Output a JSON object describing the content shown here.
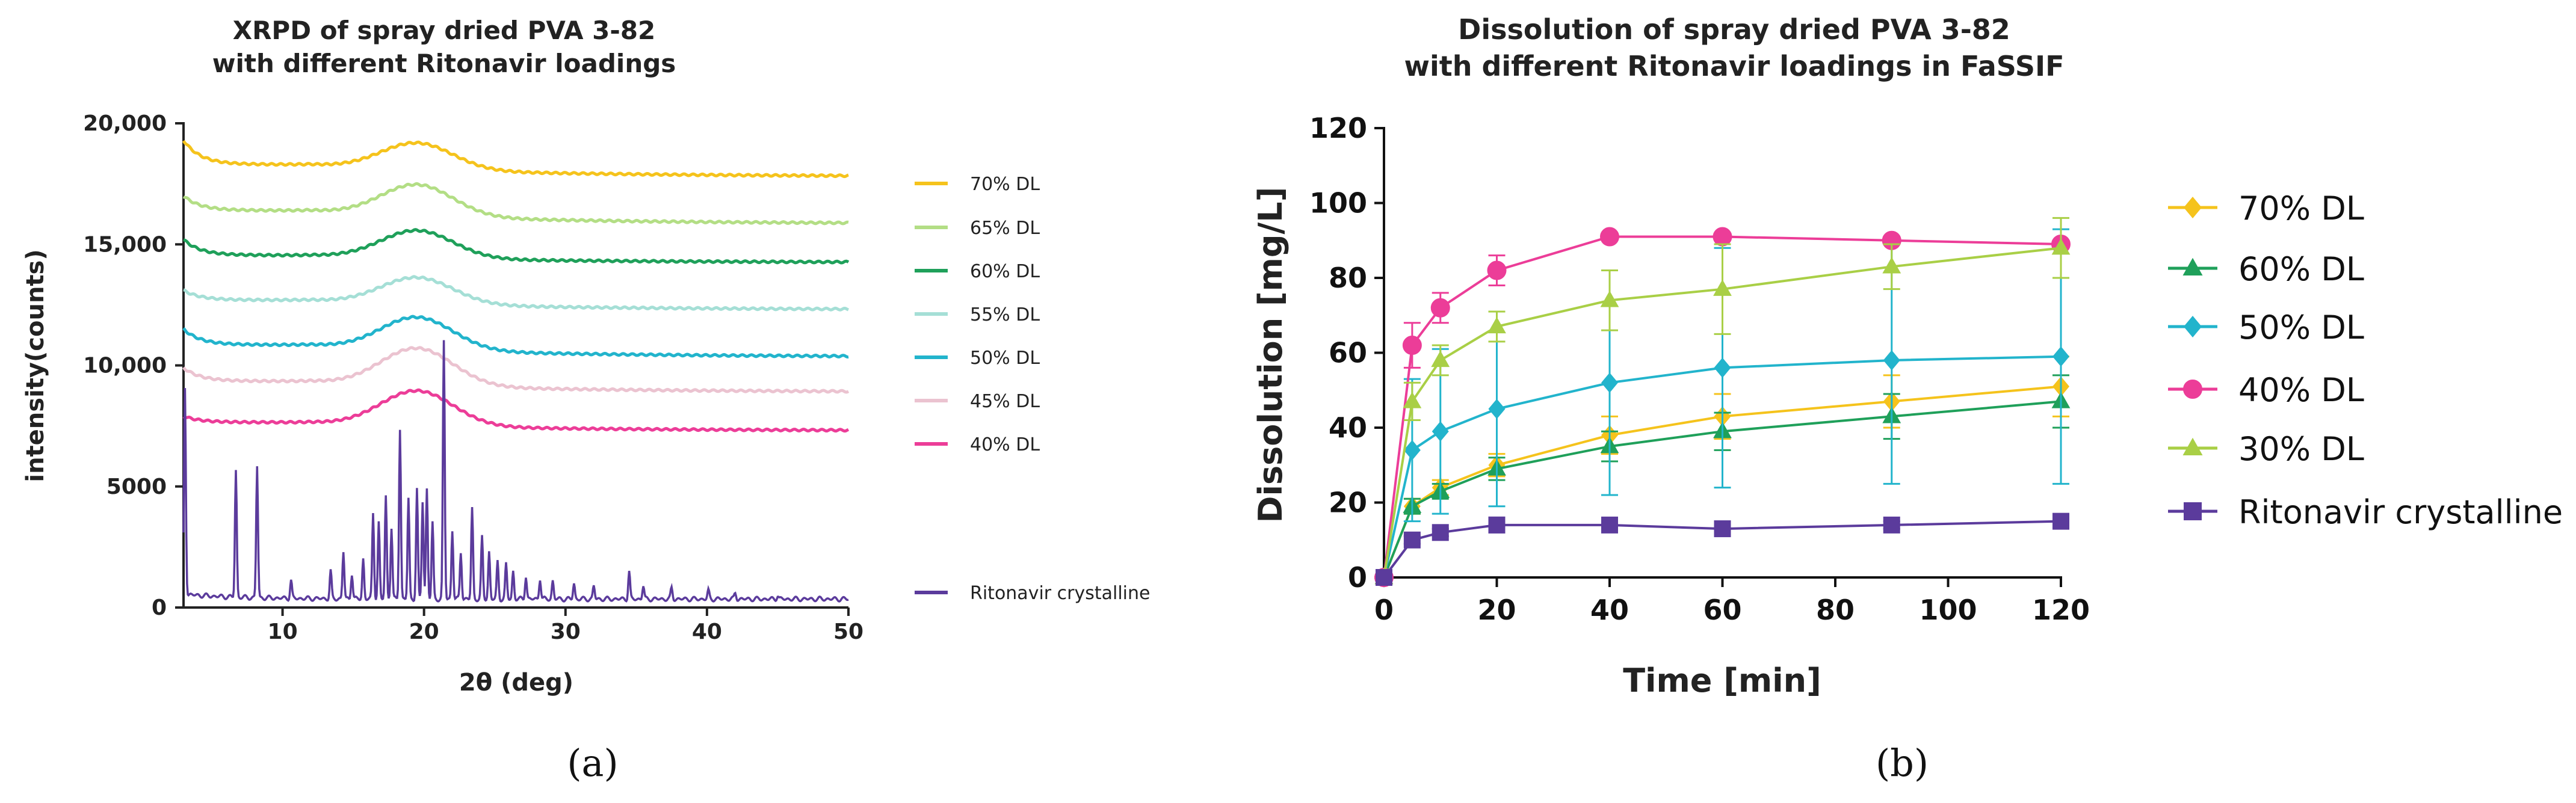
{
  "panel_labels": [
    "(a)",
    "(b)"
  ],
  "chart_data": [
    {
      "type": "line",
      "title": "XRPD of spray dried PVA 3-82",
      "subtitle": "with different Ritonavir loadings",
      "xlabel": "2θ (deg)",
      "ylabel": "intensity(counts)",
      "xlim": [
        3,
        50
      ],
      "ylim": [
        0,
        20000
      ],
      "xticks": [
        10,
        20,
        30,
        40,
        50
      ],
      "yticks": [
        0,
        5000,
        10000,
        15000,
        20000
      ],
      "ytick_labels": [
        "0",
        "5000",
        "10,000",
        "15,000",
        "20,000"
      ],
      "grid": false,
      "legend_position": "right",
      "series": [
        {
          "name": "70% DL",
          "color": "#f5c31c",
          "baseline": 17800,
          "start": 19300,
          "peak": 19400,
          "dip": 18300
        },
        {
          "name": "65% DL",
          "color": "#b3de85",
          "baseline": 15850,
          "start": 17000,
          "peak": 17700,
          "dip": 16400
        },
        {
          "name": "60% DL",
          "color": "#1fa05a",
          "baseline": 14250,
          "start": 15200,
          "peak": 15700,
          "dip": 14550
        },
        {
          "name": "55% DL",
          "color": "#a5dfd6",
          "baseline": 12300,
          "start": 13100,
          "peak": 13800,
          "dip": 12700
        },
        {
          "name": "50% DL",
          "color": "#22b4cc",
          "baseline": 10350,
          "start": 11500,
          "peak": 12200,
          "dip": 10850
        },
        {
          "name": "45% DL",
          "color": "#ebc3d0",
          "baseline": 8900,
          "start": 9900,
          "peak": 10900,
          "dip": 9350
        },
        {
          "name": "40% DL",
          "color": "#ec3d98",
          "baseline": 7300,
          "start": 7900,
          "peak": 9100,
          "dip": 7650
        },
        {
          "name": "Ritonavir crystalline",
          "color": "#5b3b9c",
          "baseline": 350,
          "peaks": [
            [
              3.1,
              8900
            ],
            [
              6.7,
              5600
            ],
            [
              8.2,
              5800
            ],
            [
              10.6,
              1100
            ],
            [
              13.4,
              1500
            ],
            [
              14.3,
              2300
            ],
            [
              14.9,
              1400
            ],
            [
              15.7,
              2000
            ],
            [
              16.4,
              3900
            ],
            [
              16.8,
              3500
            ],
            [
              17.3,
              4600
            ],
            [
              17.7,
              3300
            ],
            [
              18.3,
              7400
            ],
            [
              18.9,
              4500
            ],
            [
              19.5,
              4900
            ],
            [
              19.9,
              4400
            ],
            [
              20.2,
              4900
            ],
            [
              20.6,
              3500
            ],
            [
              21.4,
              11000
            ],
            [
              22.0,
              3200
            ],
            [
              22.6,
              2300
            ],
            [
              23.4,
              4100
            ],
            [
              24.1,
              2900
            ],
            [
              24.6,
              2300
            ],
            [
              25.2,
              1900
            ],
            [
              25.8,
              1800
            ],
            [
              26.3,
              1500
            ],
            [
              27.2,
              1300
            ],
            [
              28.2,
              1200
            ],
            [
              29.1,
              1100
            ],
            [
              30.6,
              1000
            ],
            [
              32.0,
              900
            ],
            [
              34.5,
              1500
            ],
            [
              35.5,
              900
            ],
            [
              37.5,
              800
            ],
            [
              40.1,
              700
            ],
            [
              42.0,
              600
            ],
            [
              45.0,
              500
            ]
          ]
        }
      ]
    },
    {
      "type": "line",
      "title": "Dissolution of spray dried PVA 3-82",
      "subtitle": "with different Ritonavir loadings in FaSSIF",
      "xlabel": "Time [min]",
      "ylabel": "Dissolution [mg/L]",
      "xlim": [
        0,
        120
      ],
      "ylim": [
        0,
        120
      ],
      "xticks": [
        0,
        20,
        40,
        60,
        80,
        100,
        120
      ],
      "yticks": [
        0,
        20,
        40,
        60,
        80,
        100,
        120
      ],
      "grid": false,
      "legend_position": "right",
      "x": [
        0,
        5,
        10,
        20,
        40,
        60,
        90,
        120
      ],
      "series": [
        {
          "name": "70% DL",
          "color": "#f5c31c",
          "marker": "diamond",
          "values": [
            0,
            19,
            24,
            30,
            38,
            43,
            47,
            51
          ],
          "errors": [
            0,
            2,
            2,
            3,
            5,
            6,
            7,
            8
          ]
        },
        {
          "name": "60% DL",
          "color": "#1fa05a",
          "marker": "triangle",
          "values": [
            0,
            19,
            23,
            29,
            35,
            39,
            43,
            47
          ],
          "errors": [
            0,
            2,
            2,
            3,
            4,
            5,
            6,
            7
          ]
        },
        {
          "name": "50% DL",
          "color": "#22b4cc",
          "marker": "diamond",
          "values": [
            0,
            34,
            39,
            45,
            52,
            56,
            58,
            59
          ],
          "errors": [
            0,
            19,
            22,
            26,
            30,
            32,
            33,
            34
          ]
        },
        {
          "name": "40% DL",
          "color": "#ec3d98",
          "marker": "circle",
          "values": [
            0,
            62,
            72,
            82,
            91,
            91,
            90,
            89
          ],
          "errors": [
            0,
            6,
            4,
            4,
            1,
            1,
            1,
            1
          ]
        },
        {
          "name": "30% DL",
          "color": "#a9cf46",
          "marker": "triangle",
          "values": [
            0,
            47,
            58,
            67,
            74,
            77,
            83,
            88
          ],
          "errors": [
            0,
            5,
            4,
            4,
            8,
            12,
            6,
            8
          ]
        },
        {
          "name": "Ritonavir crystalline",
          "color": "#5b3b9c",
          "marker": "square",
          "values": [
            0,
            10,
            12,
            14,
            14,
            13,
            14,
            15
          ],
          "errors": [
            0,
            1,
            1,
            2,
            1,
            1,
            1,
            1
          ]
        }
      ]
    }
  ]
}
